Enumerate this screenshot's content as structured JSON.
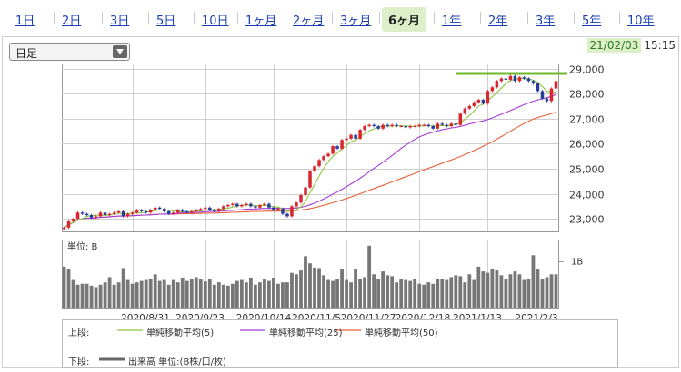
{
  "tabs": [
    "1日",
    "2日",
    "3日",
    "5日",
    "10日",
    "1ヶ月",
    "2ヶ月",
    "3ヶ月",
    "6ヶ月",
    "1年",
    "2年",
    "3年",
    "5年",
    "10年"
  ],
  "active_tab": "6ヶ月",
  "period_select": "日足",
  "timestamp": {
    "date": "21/02/03",
    "time": "15:15"
  },
  "colors": {
    "ma5": "#8cc63f",
    "ma25": "#a33bd6",
    "ma50": "#e8623a",
    "up": "#d9262e",
    "down": "#283c9a",
    "volume": "#777777",
    "resistance": "#6fb82b"
  },
  "chart_data": {
    "type": "candlestick",
    "price_ylim": [
      22500,
      29200
    ],
    "price_yticks": [
      "29,000",
      "28,000",
      "27,000",
      "26,000",
      "25,000",
      "24,000",
      "23,000"
    ],
    "x_ticks": [
      "2020/8/31",
      "2020/9/23",
      "2020/10/14",
      "2020/11/5",
      "2020/11/27",
      "2020/12/18",
      "2021/1/13",
      "2021/2/3"
    ],
    "volume_label": "単位: B",
    "volume_tick": "1B",
    "resistance_level": 28800,
    "close": [
      22650,
      22900,
      23000,
      23250,
      23200,
      23150,
      23050,
      23100,
      23250,
      23150,
      23200,
      23250,
      23300,
      23100,
      23200,
      23250,
      23350,
      23300,
      23250,
      23350,
      23450,
      23400,
      23300,
      23200,
      23250,
      23350,
      23300,
      23250,
      23300,
      23350,
      23400,
      23450,
      23350,
      23300,
      23400,
      23500,
      23550,
      23600,
      23500,
      23550,
      23600,
      23500,
      23450,
      23550,
      23600,
      23450,
      23350,
      23400,
      23200,
      23100,
      23500,
      23650,
      23950,
      24250,
      24900,
      25100,
      25350,
      25500,
      25600,
      25900,
      25800,
      26150,
      26200,
      26350,
      26200,
      26550,
      26700,
      26750,
      26700,
      26600,
      26750,
      26700,
      26750,
      26700,
      26700,
      26650,
      26700,
      26700,
      26750,
      26750,
      26700,
      26600,
      26800,
      26750,
      26700,
      26800,
      26750,
      27200,
      27400,
      27500,
      27650,
      27750,
      27600,
      28100,
      28250,
      28500,
      28600,
      28550,
      28700,
      28500,
      28650,
      28600,
      28500,
      28400,
      28100,
      27800,
      27700,
      28200,
      28500
    ],
    "volume": [
      0.88,
      0.82,
      0.6,
      0.5,
      0.52,
      0.52,
      0.48,
      0.45,
      0.5,
      0.55,
      0.66,
      0.5,
      0.55,
      0.85,
      0.6,
      0.52,
      0.55,
      0.58,
      0.6,
      0.62,
      0.72,
      0.58,
      0.6,
      0.5,
      0.6,
      0.55,
      0.65,
      0.58,
      0.62,
      0.66,
      0.62,
      0.57,
      0.62,
      0.5,
      0.55,
      0.5,
      0.48,
      0.52,
      0.58,
      0.6,
      0.55,
      0.65,
      0.5,
      0.55,
      0.62,
      0.58,
      0.65,
      0.52,
      0.55,
      0.55,
      0.75,
      0.72,
      0.8,
      1.1,
      0.95,
      0.86,
      0.85,
      0.7,
      0.6,
      0.58,
      0.62,
      0.82,
      0.6,
      0.55,
      0.82,
      0.62,
      0.66,
      1.32,
      0.72,
      0.62,
      0.78,
      0.7,
      0.68,
      0.55,
      0.62,
      0.6,
      0.58,
      0.62,
      0.52,
      0.5,
      0.55,
      0.52,
      0.62,
      0.62,
      0.6,
      0.66,
      0.7,
      0.68,
      0.55,
      0.72,
      0.6,
      0.88,
      0.78,
      0.75,
      0.82,
      0.8,
      0.7,
      0.62,
      0.72,
      0.78,
      0.72,
      0.6,
      0.62,
      1.12,
      0.82,
      0.62,
      0.66,
      0.72,
      0.72
    ]
  },
  "legend": {
    "upper_label": "上段:",
    "lower_label": "下段:",
    "ma5": "単純移動平均(5)",
    "ma25": "単純移動平均(25)",
    "ma50": "単純移動平均(50)",
    "volume": "出来高 単位:(B株/口/枚)"
  }
}
